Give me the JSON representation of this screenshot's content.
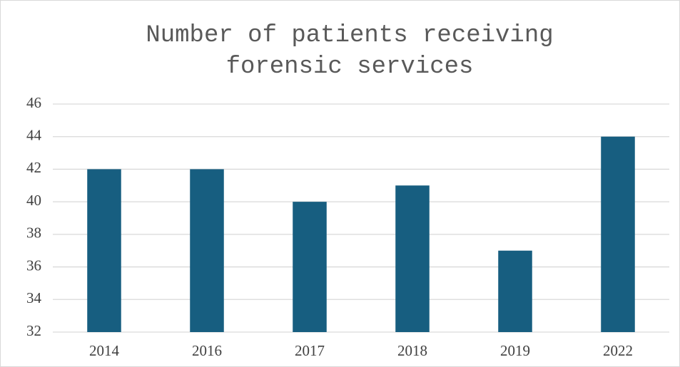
{
  "chart_data": {
    "type": "bar",
    "title": "Number of patients receiving forensic services",
    "categories": [
      "2014",
      "2016",
      "2017",
      "2018",
      "2019",
      "2022"
    ],
    "values": [
      42,
      42,
      40,
      41,
      37,
      44
    ],
    "color": "#175e80",
    "ylim": [
      32,
      46
    ],
    "yticks": [
      32,
      34,
      36,
      38,
      40,
      42,
      44,
      46
    ],
    "grid": true
  }
}
